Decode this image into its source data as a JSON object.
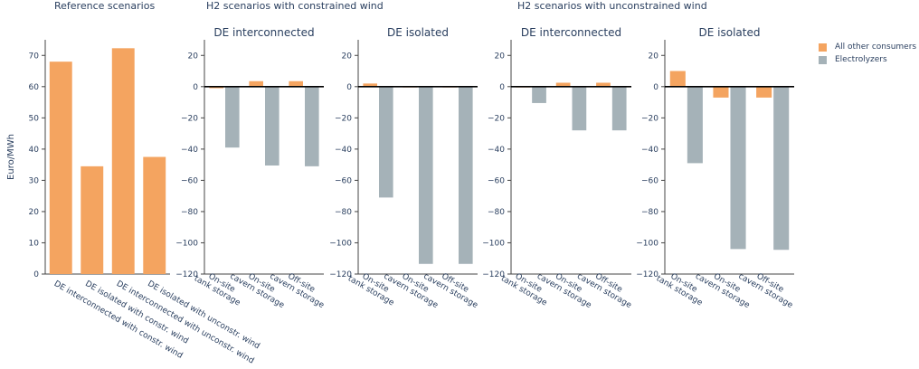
{
  "group_titles": {
    "reference": "Reference scenarios",
    "constrained": "H2 scenarios with constrained wind",
    "unconstrained": "H2 scenarios with unconstrained wind"
  },
  "legend": [
    {
      "name": "All other consumers",
      "color": "#F4A460"
    },
    {
      "name": "Electrolyzers",
      "color": "#A5B2B8"
    }
  ],
  "chart_data": [
    {
      "type": "bar",
      "title": "",
      "ylabel": "Euro/MWh",
      "ylim": [
        0,
        75
      ],
      "yticks": [
        0,
        10,
        20,
        30,
        40,
        50,
        60,
        70
      ],
      "categories": [
        "DE interconnected with constr. wind",
        "DE isolated with constr. wind",
        "DE interconnected with unconstr. wind",
        "DE isolated with unconstr. wind"
      ],
      "series": [
        {
          "name": "All other consumers",
          "values": [
            68,
            34.5,
            72.3,
            37.5
          ]
        }
      ]
    },
    {
      "type": "bar",
      "title": "DE interconnected",
      "ylim": [
        -120,
        30
      ],
      "yticks": [
        20,
        0,
        -20,
        -40,
        -60,
        -80,
        -100,
        -120
      ],
      "categories": [
        "On-site tank storage",
        "On-site cavern storage",
        "Off-site cavern storage"
      ],
      "series": [
        {
          "name": "All other consumers",
          "values": [
            -1,
            3.5,
            3.5
          ]
        },
        {
          "name": "Electrolyzers",
          "values": [
            -39,
            -50.5,
            -51
          ]
        }
      ]
    },
    {
      "type": "bar",
      "title": "DE isolated",
      "ylim": [
        -120,
        30
      ],
      "yticks": [
        20,
        0,
        -20,
        -40,
        -60,
        -80,
        -100,
        -120
      ],
      "categories": [
        "On-site tank storage",
        "On-site cavern storage",
        "Off-site cavern storage"
      ],
      "series": [
        {
          "name": "All other consumers",
          "values": [
            2,
            -0.5,
            -0.5
          ]
        },
        {
          "name": "Electrolyzers",
          "values": [
            -71,
            -113.5,
            -113.5
          ]
        }
      ]
    },
    {
      "type": "bar",
      "title": "DE interconnected",
      "ylim": [
        -120,
        30
      ],
      "yticks": [
        20,
        0,
        -20,
        -40,
        -60,
        -80,
        -100,
        -120
      ],
      "categories": [
        "On-site tank storage",
        "On-site cavern storage",
        "Off-site cavern storage"
      ],
      "series": [
        {
          "name": "All other consumers",
          "values": [
            -0.5,
            2.5,
            2.5
          ]
        },
        {
          "name": "Electrolyzers",
          "values": [
            -10.5,
            -28,
            -28
          ]
        }
      ]
    },
    {
      "type": "bar",
      "title": "DE isolated",
      "ylim": [
        -120,
        30
      ],
      "yticks": [
        20,
        0,
        -20,
        -40,
        -60,
        -80,
        -100,
        -120
      ],
      "categories": [
        "On-site tank storage",
        "On-site cavern storage",
        "Off-site cavern storage"
      ],
      "series": [
        {
          "name": "All other consumers",
          "values": [
            10,
            -7,
            -7
          ]
        },
        {
          "name": "Electrolyzers",
          "values": [
            -49,
            -104,
            -104.5
          ]
        }
      ]
    }
  ]
}
